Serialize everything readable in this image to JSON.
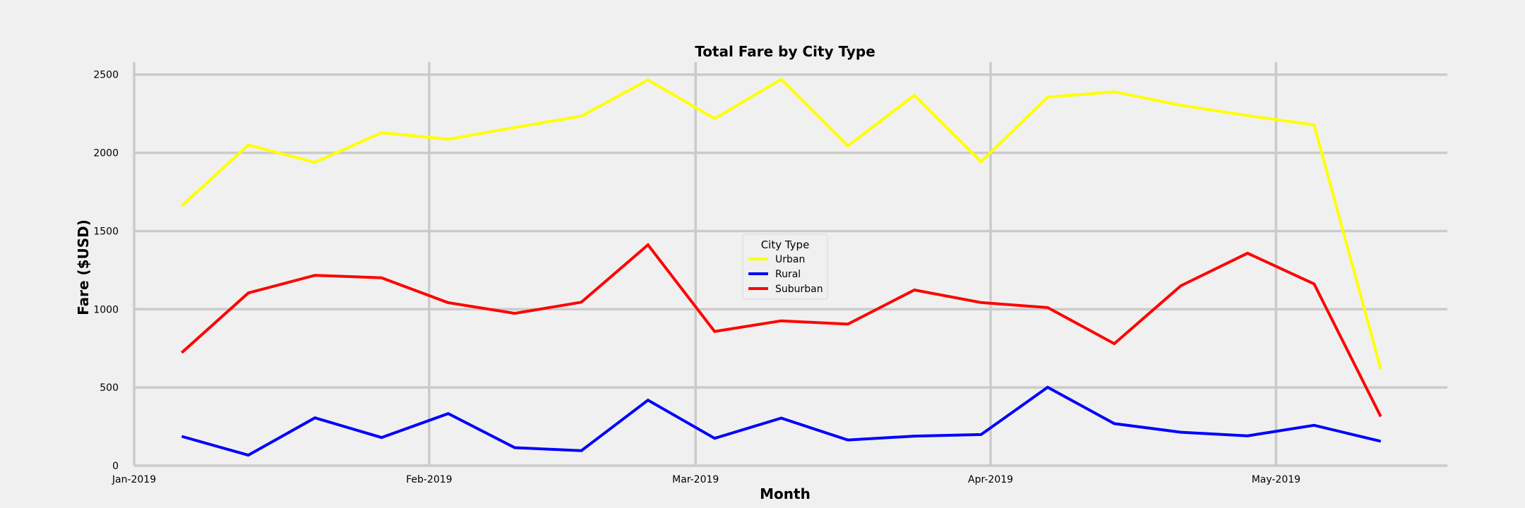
{
  "chart_data": {
    "type": "line",
    "title": "Total Fare by City Type",
    "xlabel": "Month",
    "ylabel": "Fare ($USD)",
    "x": [
      "2019-01-06",
      "2019-01-13",
      "2019-01-20",
      "2019-01-27",
      "2019-02-03",
      "2019-02-10",
      "2019-02-17",
      "2019-02-24",
      "2019-03-03",
      "2019-03-10",
      "2019-03-17",
      "2019-03-24",
      "2019-03-31",
      "2019-04-07",
      "2019-04-14",
      "2019-04-21",
      "2019-04-28",
      "2019-05-05",
      "2019-05-12"
    ],
    "xlim": [
      "2019-01-01",
      "2019-05-19"
    ],
    "ylim": [
      0,
      2580
    ],
    "x_ticks": [
      {
        "date": "2019-01-01",
        "label": "Jan-2019"
      },
      {
        "date": "2019-02-01",
        "label": "Feb-2019"
      },
      {
        "date": "2019-03-01",
        "label": "Mar-2019"
      },
      {
        "date": "2019-04-01",
        "label": "Apr-2019"
      },
      {
        "date": "2019-05-01",
        "label": "May-2019"
      }
    ],
    "y_ticks": [
      0,
      500,
      1000,
      1500,
      2000,
      2500
    ],
    "grid": true,
    "legend": {
      "title": "City Type",
      "placement": "center"
    },
    "series": [
      {
        "name": "Urban",
        "color": "#ffff00",
        "values": [
          1661,
          2050,
          1939,
          2129,
          2087,
          2162,
          2235,
          2466,
          2219,
          2470,
          2044,
          2368,
          1943,
          2356,
          2390,
          2304,
          2238,
          2178,
          617
        ]
      },
      {
        "name": "Rural",
        "color": "#0000ff",
        "values": [
          187,
          67,
          306,
          180,
          333,
          115,
          96,
          419,
          175,
          304,
          164,
          189,
          199,
          501,
          269,
          214,
          191,
          258,
          156
        ]
      },
      {
        "name": "Suburban",
        "color": "#ff0000",
        "values": [
          722,
          1104,
          1217,
          1201,
          1042,
          974,
          1045,
          1412,
          858,
          926,
          905,
          1123,
          1043,
          1011,
          780,
          1150,
          1358,
          1162,
          314
        ]
      }
    ]
  }
}
